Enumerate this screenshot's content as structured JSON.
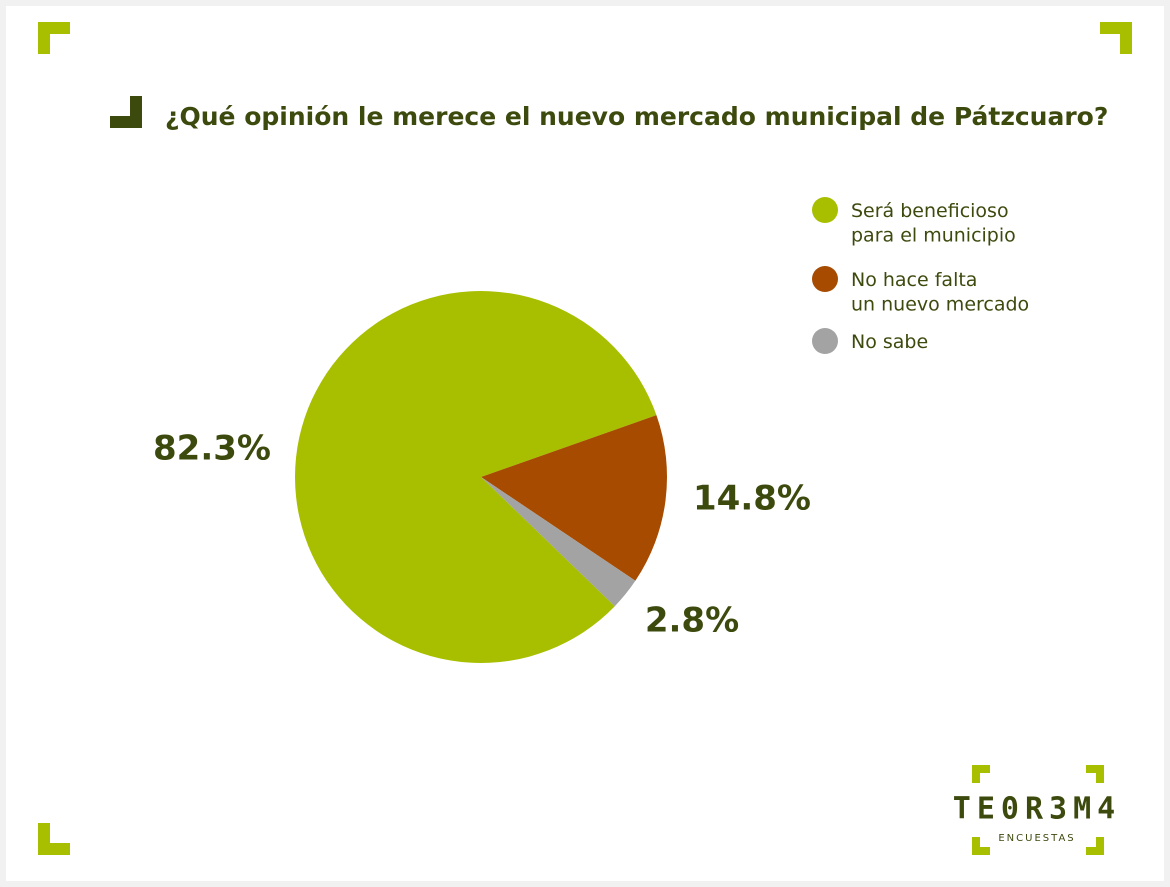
{
  "chart_data": {
    "type": "pie",
    "title": "¿Qué opinión le merece el nuevo mercado municipal de Pátzcuaro?",
    "categories": [
      "Será beneficioso\npara el municipio",
      "No hace falta\nun nuevo mercado",
      "No sabe"
    ],
    "values": [
      82.3,
      14.8,
      2.8
    ],
    "value_labels": [
      "82.3%",
      "14.8%",
      "2.8%"
    ],
    "colors": [
      "#a8bf00",
      "#a64b00",
      "#a3a3a3"
    ],
    "legend": "upper right"
  },
  "branding": {
    "logo": "TE0R3M4",
    "tagline": "ENCUESTAS"
  }
}
